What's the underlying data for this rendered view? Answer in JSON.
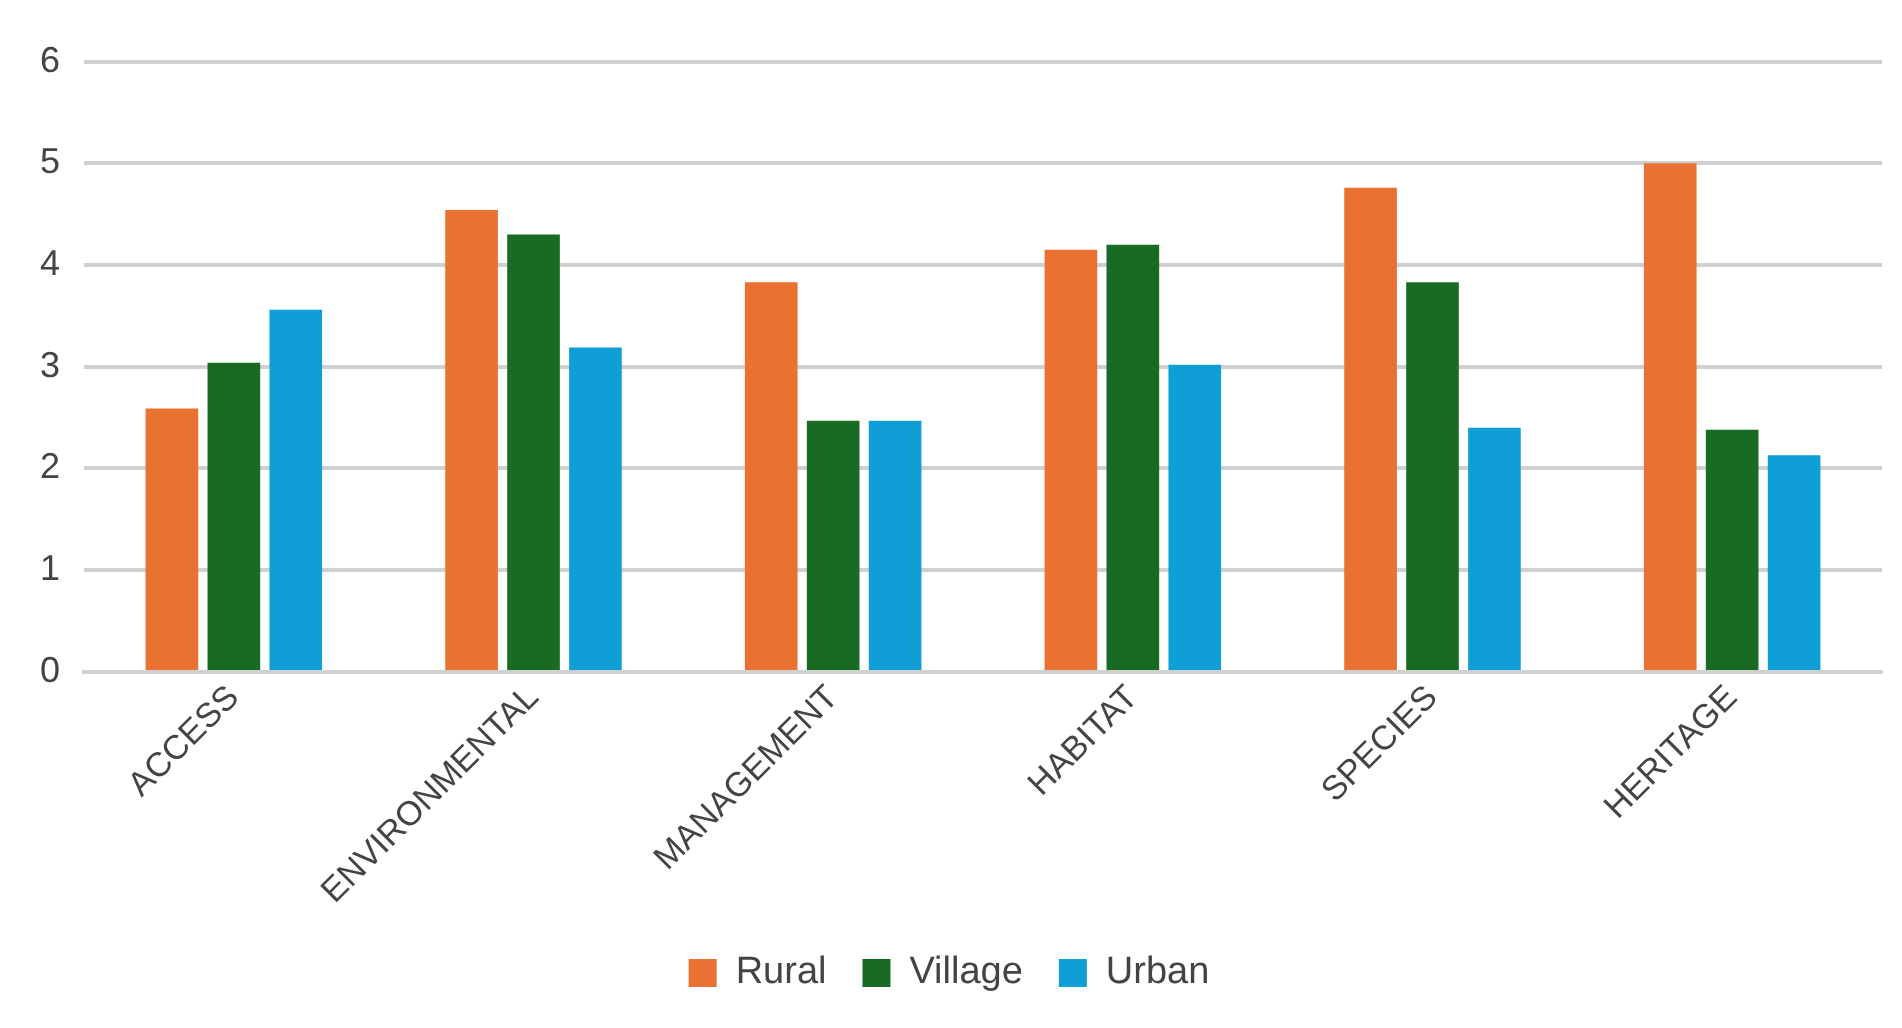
{
  "chart_data": {
    "type": "bar",
    "categories": [
      "ACCESS",
      "ENVIRONMENTAL",
      "MANAGEMENT",
      "HABITAT",
      "SPECIES",
      "HERITAGE"
    ],
    "series": [
      {
        "name": "Rural",
        "color": "#e97132",
        "values": [
          2.59,
          4.54,
          3.83,
          4.15,
          4.76,
          5.0
        ]
      },
      {
        "name": "Village",
        "color": "#196b24",
        "values": [
          3.04,
          4.3,
          2.47,
          4.2,
          3.83,
          2.38
        ]
      },
      {
        "name": "Urban",
        "color": "#0f9ed5",
        "values": [
          3.56,
          3.19,
          2.47,
          3.02,
          2.4,
          2.13
        ]
      }
    ],
    "ylim": [
      0,
      6
    ],
    "yticks": [
      0,
      1,
      2,
      3,
      4,
      5,
      6
    ],
    "grid": "y",
    "legend": "bottom"
  }
}
